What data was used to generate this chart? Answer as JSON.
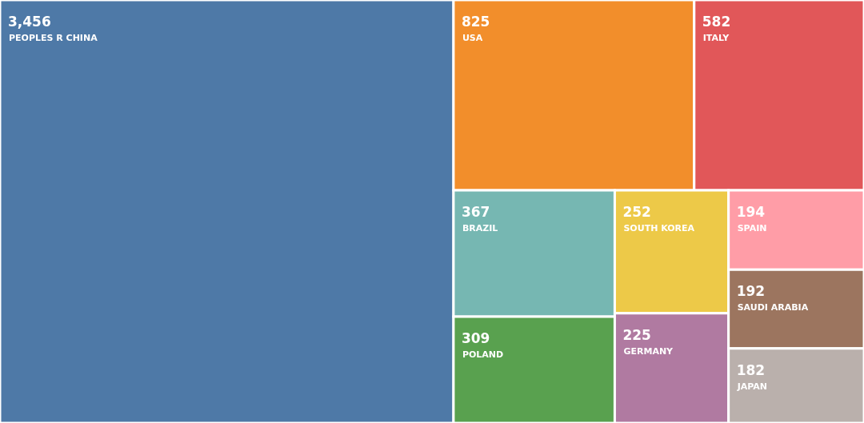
{
  "chart_data": {
    "type": "other",
    "categories": [
      "PEOPLES R CHINA",
      "USA",
      "ITALY",
      "BRAZIL",
      "POLAND",
      "SOUTH KOREA",
      "GERMANY",
      "SPAIN",
      "SAUDI ARABIA",
      "JAPAN"
    ],
    "values": [
      3456,
      825,
      582,
      367,
      309,
      252,
      225,
      194,
      192,
      182
    ],
    "value_labels": [
      "3,456",
      "825",
      "582",
      "367",
      "309",
      "252",
      "225",
      "194",
      "192",
      "182"
    ],
    "colors": [
      "#4e79a7",
      "#f28e2b",
      "#e15759",
      "#76b7b2",
      "#59a14f",
      "#edc948",
      "#b07aa1",
      "#ff9da7",
      "#9c755f",
      "#bab0ac"
    ]
  }
}
